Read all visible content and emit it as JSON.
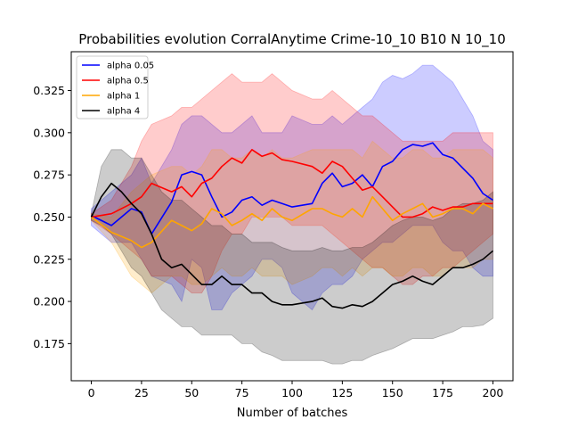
{
  "chart_data": {
    "type": "line",
    "title": "Probabilities evolution CorralAnytime Crime-10_10 B10 N 10_10",
    "xlabel": "Number of batches",
    "ylabel": "",
    "xlim": [
      -10,
      210
    ],
    "ylim": [
      0.153,
      0.348
    ],
    "xticks": [
      0,
      25,
      50,
      75,
      100,
      125,
      150,
      175,
      200
    ],
    "yticks": [
      0.175,
      0.2,
      0.225,
      0.25,
      0.275,
      0.3,
      0.325
    ],
    "ytick_labels": [
      "0.175",
      "0.200",
      "0.225",
      "0.250",
      "0.275",
      "0.300",
      "0.325"
    ],
    "grid": false,
    "legend_position": "top-left",
    "series": [
      {
        "name": "alpha 0.05",
        "color": "#0000ff",
        "x": [
          0,
          10,
          20,
          25,
          30,
          40,
          45,
          50,
          55,
          60,
          65,
          70,
          75,
          80,
          85,
          90,
          95,
          100,
          110,
          115,
          120,
          125,
          130,
          135,
          140,
          145,
          150,
          155,
          160,
          165,
          170,
          175,
          180,
          185,
          190,
          195,
          200
        ],
        "values": [
          0.251,
          0.245,
          0.255,
          0.253,
          0.24,
          0.259,
          0.275,
          0.277,
          0.275,
          0.262,
          0.25,
          0.253,
          0.26,
          0.262,
          0.257,
          0.26,
          0.258,
          0.256,
          0.258,
          0.27,
          0.276,
          0.268,
          0.27,
          0.275,
          0.268,
          0.28,
          0.283,
          0.29,
          0.293,
          0.292,
          0.294,
          0.287,
          0.285,
          0.279,
          0.273,
          0.264,
          0.26
        ],
        "lower": [
          0.245,
          0.235,
          0.235,
          0.225,
          0.215,
          0.21,
          0.2,
          0.225,
          0.22,
          0.195,
          0.195,
          0.205,
          0.21,
          0.215,
          0.225,
          0.225,
          0.22,
          0.205,
          0.195,
          0.205,
          0.21,
          0.21,
          0.215,
          0.225,
          0.23,
          0.235,
          0.235,
          0.24,
          0.245,
          0.245,
          0.245,
          0.235,
          0.23,
          0.23,
          0.22,
          0.215,
          0.215
        ],
        "upper": [
          0.255,
          0.265,
          0.275,
          0.285,
          0.27,
          0.29,
          0.305,
          0.31,
          0.31,
          0.305,
          0.3,
          0.3,
          0.305,
          0.31,
          0.3,
          0.3,
          0.3,
          0.31,
          0.305,
          0.305,
          0.31,
          0.305,
          0.31,
          0.315,
          0.32,
          0.33,
          0.334,
          0.332,
          0.335,
          0.34,
          0.34,
          0.335,
          0.33,
          0.32,
          0.31,
          0.295,
          0.29
        ]
      },
      {
        "name": "alpha 0.5",
        "color": "#ff0000",
        "x": [
          0,
          10,
          20,
          25,
          30,
          40,
          45,
          50,
          55,
          60,
          65,
          70,
          75,
          80,
          85,
          90,
          95,
          100,
          110,
          115,
          120,
          125,
          130,
          135,
          140,
          145,
          150,
          155,
          160,
          165,
          170,
          175,
          180,
          185,
          190,
          195,
          200
        ],
        "values": [
          0.25,
          0.252,
          0.258,
          0.262,
          0.27,
          0.265,
          0.268,
          0.262,
          0.27,
          0.273,
          0.28,
          0.285,
          0.282,
          0.29,
          0.286,
          0.288,
          0.284,
          0.283,
          0.28,
          0.276,
          0.283,
          0.28,
          0.273,
          0.266,
          0.268,
          0.262,
          0.256,
          0.25,
          0.25,
          0.252,
          0.256,
          0.254,
          0.256,
          0.256,
          0.258,
          0.258,
          0.258
        ],
        "lower": [
          0.248,
          0.24,
          0.23,
          0.225,
          0.215,
          0.215,
          0.21,
          0.205,
          0.205,
          0.215,
          0.23,
          0.24,
          0.24,
          0.25,
          0.25,
          0.25,
          0.25,
          0.245,
          0.245,
          0.245,
          0.24,
          0.235,
          0.23,
          0.225,
          0.22,
          0.22,
          0.215,
          0.21,
          0.21,
          0.215,
          0.215,
          0.22,
          0.22,
          0.225,
          0.23,
          0.235,
          0.24
        ],
        "upper": [
          0.252,
          0.26,
          0.28,
          0.295,
          0.305,
          0.31,
          0.315,
          0.315,
          0.32,
          0.325,
          0.33,
          0.335,
          0.33,
          0.33,
          0.33,
          0.335,
          0.33,
          0.325,
          0.32,
          0.32,
          0.325,
          0.32,
          0.315,
          0.31,
          0.31,
          0.305,
          0.3,
          0.295,
          0.295,
          0.295,
          0.295,
          0.295,
          0.3,
          0.3,
          0.3,
          0.3,
          0.3
        ]
      },
      {
        "name": "alpha 1",
        "color": "#ffa500",
        "x": [
          0,
          10,
          20,
          25,
          30,
          40,
          45,
          50,
          55,
          60,
          65,
          70,
          75,
          80,
          85,
          90,
          95,
          100,
          110,
          115,
          120,
          125,
          130,
          135,
          140,
          145,
          150,
          155,
          160,
          165,
          170,
          175,
          180,
          185,
          190,
          195,
          200
        ],
        "values": [
          0.25,
          0.241,
          0.236,
          0.232,
          0.235,
          0.248,
          0.245,
          0.242,
          0.246,
          0.255,
          0.252,
          0.245,
          0.248,
          0.252,
          0.248,
          0.255,
          0.25,
          0.248,
          0.255,
          0.255,
          0.252,
          0.25,
          0.255,
          0.25,
          0.262,
          0.255,
          0.248,
          0.252,
          0.255,
          0.258,
          0.25,
          0.252,
          0.255,
          0.255,
          0.252,
          0.258,
          0.255
        ],
        "lower": [
          0.248,
          0.235,
          0.215,
          0.21,
          0.205,
          0.215,
          0.215,
          0.21,
          0.21,
          0.215,
          0.22,
          0.215,
          0.215,
          0.22,
          0.215,
          0.215,
          0.215,
          0.21,
          0.215,
          0.22,
          0.22,
          0.215,
          0.22,
          0.215,
          0.22,
          0.22,
          0.215,
          0.215,
          0.22,
          0.22,
          0.215,
          0.215,
          0.22,
          0.22,
          0.22,
          0.225,
          0.225
        ],
        "upper": [
          0.252,
          0.25,
          0.265,
          0.27,
          0.275,
          0.28,
          0.28,
          0.275,
          0.28,
          0.29,
          0.29,
          0.285,
          0.285,
          0.29,
          0.285,
          0.29,
          0.285,
          0.285,
          0.29,
          0.29,
          0.29,
          0.29,
          0.29,
          0.285,
          0.295,
          0.29,
          0.285,
          0.285,
          0.29,
          0.29,
          0.285,
          0.285,
          0.29,
          0.29,
          0.29,
          0.29,
          0.285
        ]
      },
      {
        "name": "alpha 4",
        "color": "#000000",
        "x": [
          0,
          5,
          10,
          15,
          20,
          25,
          30,
          35,
          40,
          45,
          50,
          55,
          60,
          65,
          70,
          75,
          80,
          85,
          90,
          95,
          100,
          110,
          115,
          120,
          125,
          130,
          135,
          140,
          145,
          150,
          155,
          160,
          165,
          170,
          175,
          180,
          185,
          190,
          195,
          200
        ],
        "values": [
          0.25,
          0.262,
          0.27,
          0.265,
          0.258,
          0.252,
          0.24,
          0.225,
          0.22,
          0.222,
          0.216,
          0.21,
          0.21,
          0.215,
          0.21,
          0.21,
          0.205,
          0.205,
          0.2,
          0.198,
          0.198,
          0.2,
          0.202,
          0.197,
          0.196,
          0.198,
          0.197,
          0.2,
          0.205,
          0.21,
          0.212,
          0.215,
          0.212,
          0.21,
          0.215,
          0.22,
          0.22,
          0.222,
          0.225,
          0.23
        ],
        "lower": [
          0.248,
          0.245,
          0.24,
          0.23,
          0.22,
          0.215,
          0.205,
          0.195,
          0.19,
          0.185,
          0.185,
          0.18,
          0.18,
          0.18,
          0.18,
          0.175,
          0.175,
          0.17,
          0.168,
          0.165,
          0.165,
          0.165,
          0.165,
          0.163,
          0.163,
          0.165,
          0.165,
          0.168,
          0.17,
          0.172,
          0.175,
          0.178,
          0.178,
          0.178,
          0.18,
          0.182,
          0.185,
          0.185,
          0.186,
          0.19
        ],
        "upper": [
          0.252,
          0.28,
          0.29,
          0.29,
          0.285,
          0.285,
          0.275,
          0.265,
          0.26,
          0.26,
          0.255,
          0.25,
          0.245,
          0.245,
          0.24,
          0.24,
          0.235,
          0.235,
          0.235,
          0.232,
          0.23,
          0.23,
          0.232,
          0.23,
          0.23,
          0.232,
          0.232,
          0.235,
          0.24,
          0.245,
          0.248,
          0.25,
          0.25,
          0.248,
          0.25,
          0.255,
          0.258,
          0.258,
          0.26,
          0.265
        ]
      }
    ]
  }
}
